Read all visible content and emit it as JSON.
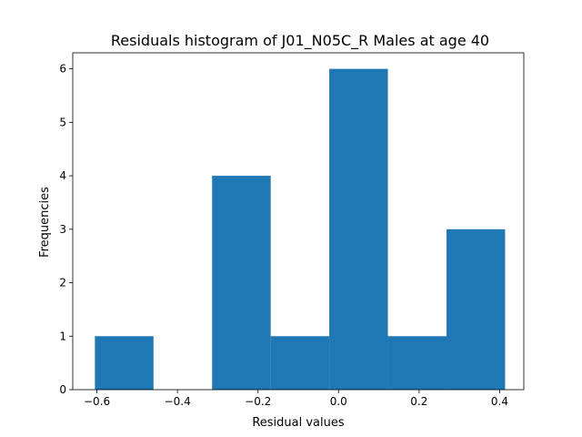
{
  "chart_data": {
    "type": "bar",
    "title": "Residuals histogram of J01_N05C_R Males at age 40",
    "xlabel": "Residual values",
    "ylabel": "Frequencies",
    "bin_edges": [
      -0.605,
      -0.4595,
      -0.314,
      -0.1685,
      -0.023,
      0.1225,
      0.268,
      0.4135
    ],
    "values": [
      1,
      0,
      4,
      1,
      6,
      1,
      3
    ],
    "xlim": [
      -0.66,
      0.46
    ],
    "ylim": [
      0,
      6.3
    ],
    "xticks": [
      -0.6,
      -0.4,
      -0.2,
      0.0,
      0.2,
      0.4
    ],
    "xtick_labels": [
      "−0.6",
      "−0.4",
      "−0.2",
      "0.0",
      "0.2",
      "0.4"
    ],
    "yticks": [
      0,
      1,
      2,
      3,
      4,
      5,
      6
    ],
    "ytick_labels": [
      "0",
      "1",
      "2",
      "3",
      "4",
      "5",
      "6"
    ],
    "bar_color": "#1f77b4",
    "grid": false
  }
}
